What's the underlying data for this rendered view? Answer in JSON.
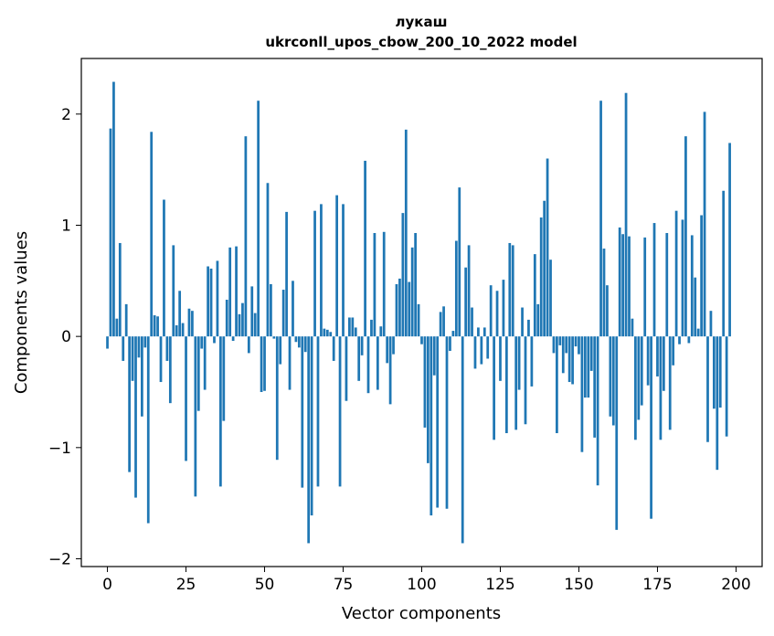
{
  "chart_data": {
    "type": "bar",
    "title": "лукаш",
    "subtitle": "ukrconll_upos_cbow_200_10_2022 model",
    "xlabel": "Vector components",
    "ylabel": "Components values",
    "xlim": [
      -8.3,
      208.3
    ],
    "ylim": [
      -2.07,
      2.5
    ],
    "xticks": [
      0,
      25,
      50,
      75,
      100,
      125,
      150,
      175,
      200
    ],
    "xtick_labels": [
      "0",
      "25",
      "50",
      "75",
      "100",
      "125",
      "150",
      "175",
      "200"
    ],
    "yticks": [
      -2,
      -1,
      0,
      1,
      2
    ],
    "ytick_labels": [
      "−2",
      "−1",
      "0",
      "1",
      "2"
    ],
    "bar_color": "#1f77b4",
    "grid": false,
    "legend": false,
    "values": [
      -0.11,
      1.87,
      2.29,
      0.16,
      0.84,
      -0.22,
      0.29,
      -1.22,
      -0.4,
      -1.45,
      -0.19,
      -0.72,
      -0.1,
      -1.68,
      1.84,
      0.19,
      0.18,
      -0.41,
      1.23,
      -0.22,
      -0.6,
      0.82,
      0.1,
      0.41,
      0.12,
      -1.12,
      0.25,
      0.23,
      -1.44,
      -0.67,
      -0.11,
      -0.48,
      0.63,
      0.61,
      -0.06,
      0.68,
      -1.35,
      -0.76,
      0.33,
      0.8,
      -0.04,
      0.81,
      0.2,
      0.3,
      1.8,
      -0.15,
      0.45,
      0.21,
      2.12,
      -0.5,
      -0.49,
      1.38,
      0.47,
      -0.02,
      -1.11,
      -0.25,
      0.42,
      1.12,
      -0.48,
      0.5,
      -0.05,
      -0.1,
      -1.36,
      -0.14,
      -1.86,
      -1.61,
      1.13,
      -1.35,
      1.19,
      0.07,
      0.06,
      0.04,
      -0.22,
      1.27,
      -1.35,
      1.19,
      -0.58,
      0.17,
      0.17,
      0.08,
      -0.4,
      -0.17,
      1.58,
      -0.51,
      0.15,
      0.93,
      -0.48,
      0.09,
      0.94,
      -0.24,
      -0.61,
      -0.16,
      0.47,
      0.52,
      1.11,
      1.86,
      0.49,
      0.8,
      0.93,
      0.29,
      -0.07,
      -0.82,
      -1.14,
      -1.61,
      -0.35,
      -1.54,
      0.22,
      0.27,
      -1.55,
      -0.13,
      0.05,
      0.86,
      1.34,
      -1.86,
      0.62,
      0.82,
      0.26,
      -0.29,
      0.08,
      -0.25,
      0.08,
      -0.2,
      0.46,
      -0.93,
      0.41,
      -0.4,
      0.51,
      -0.87,
      0.84,
      0.82,
      -0.84,
      -0.48,
      0.26,
      -0.79,
      0.15,
      -0.45,
      0.74,
      0.29,
      1.07,
      1.22,
      1.6,
      0.69,
      -0.15,
      -0.87,
      -0.08,
      -0.33,
      -0.15,
      -0.41,
      -0.43,
      -0.09,
      -0.16,
      -1.04,
      -0.55,
      -0.55,
      -0.31,
      -0.91,
      -1.34,
      2.12,
      0.79,
      0.46,
      -0.72,
      -0.8,
      -1.74,
      0.98,
      0.92,
      2.19,
      0.9,
      0.16,
      -0.93,
      -0.75,
      -0.62,
      0.89,
      -0.44,
      -1.64,
      1.02,
      -0.36,
      -0.93,
      -0.49,
      0.93,
      -0.84,
      -0.26,
      1.13,
      -0.07,
      1.05,
      1.8,
      -0.06,
      0.91,
      0.53,
      0.07,
      1.09,
      2.02,
      -0.95,
      0.23,
      -0.65,
      -1.2,
      -0.64,
      1.31,
      -0.9,
      1.74
    ]
  }
}
